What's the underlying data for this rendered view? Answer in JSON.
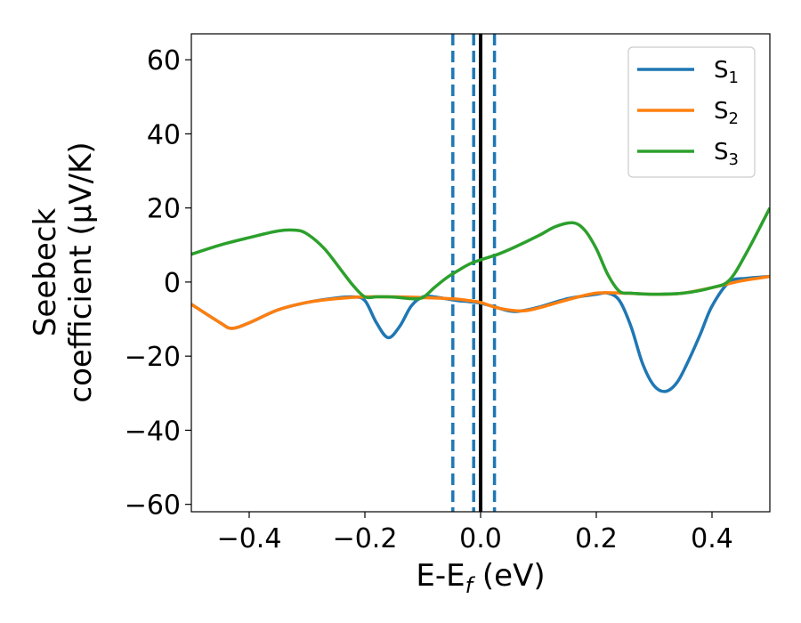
{
  "chart_data": {
    "type": "line",
    "xlabel": "E-E",
    "xlabel_sub": "f",
    "xlabel_unit": " (eV)",
    "ylabel_line1": "Seebeck",
    "ylabel_line2": "coefficient  (μV/K)",
    "xlim": [
      -0.5,
      0.5
    ],
    "ylim": [
      -62,
      67
    ],
    "xticks": [
      -0.4,
      -0.2,
      0.0,
      0.2,
      0.4
    ],
    "xtick_labels": [
      "−0.4",
      "−0.2",
      "0.0",
      "0.2",
      "0.4"
    ],
    "yticks": [
      -60,
      -40,
      -20,
      0,
      20,
      40,
      60
    ],
    "ytick_labels": [
      "−60",
      "−40",
      "−20",
      "0",
      "20",
      "40",
      "60"
    ],
    "grid": false,
    "legend_position": "top-right",
    "vlines": [
      {
        "x": 0.0,
        "style": "solid",
        "color": "#000000"
      },
      {
        "x": -0.048,
        "style": "dashed",
        "color": "#1f77b4"
      },
      {
        "x": -0.012,
        "style": "dashed",
        "color": "#1f77b4"
      },
      {
        "x": 0.024,
        "style": "dashed",
        "color": "#1f77b4"
      }
    ],
    "series": [
      {
        "name": "S",
        "sub": "1",
        "color": "#1f77b4",
        "x": [
          -0.5,
          -0.45,
          -0.43,
          -0.4,
          -0.35,
          -0.3,
          -0.25,
          -0.22,
          -0.2,
          -0.18,
          -0.16,
          -0.14,
          -0.12,
          -0.1,
          -0.08,
          -0.06,
          -0.04,
          -0.02,
          0.0,
          0.02,
          0.05,
          0.07,
          0.1,
          0.15,
          0.2,
          0.22,
          0.24,
          0.26,
          0.28,
          0.3,
          0.32,
          0.34,
          0.36,
          0.38,
          0.4,
          0.43,
          0.46,
          0.5
        ],
        "y": [
          -6,
          -11,
          -12.5,
          -11,
          -7.5,
          -5.5,
          -4.3,
          -4.0,
          -5.0,
          -11,
          -15,
          -12,
          -6.5,
          -4.0,
          -4.0,
          -4.5,
          -5.0,
          -5.3,
          -5.7,
          -6.5,
          -7.8,
          -7.8,
          -6.8,
          -4.5,
          -3.3,
          -3.0,
          -5.0,
          -12,
          -22,
          -28,
          -29.5,
          -27,
          -21,
          -14,
          -6.5,
          0.0,
          1.0,
          1.5
        ]
      },
      {
        "name": "S",
        "sub": "2",
        "color": "#ff7f0e",
        "x": [
          -0.5,
          -0.45,
          -0.43,
          -0.4,
          -0.35,
          -0.3,
          -0.25,
          -0.2,
          -0.15,
          -0.1,
          -0.05,
          -0.02,
          0.0,
          0.03,
          0.07,
          0.1,
          0.15,
          0.2,
          0.25,
          0.3,
          0.35,
          0.4,
          0.45,
          0.5
        ],
        "y": [
          -6,
          -11,
          -12.5,
          -11,
          -7.5,
          -5.5,
          -4.5,
          -4.0,
          -4.0,
          -4.2,
          -4.5,
          -5.0,
          -5.5,
          -7.0,
          -7.8,
          -7.0,
          -4.8,
          -3.0,
          -3.0,
          -3.3,
          -3.0,
          -1.5,
          0.3,
          1.5
        ]
      },
      {
        "name": "S",
        "sub": "3",
        "color": "#2ca02c",
        "x": [
          -0.5,
          -0.45,
          -0.4,
          -0.35,
          -0.32,
          -0.3,
          -0.27,
          -0.24,
          -0.22,
          -0.2,
          -0.18,
          -0.16,
          -0.14,
          -0.12,
          -0.1,
          -0.08,
          -0.06,
          -0.04,
          -0.02,
          0.0,
          0.03,
          0.06,
          0.1,
          0.13,
          0.16,
          0.18,
          0.2,
          0.22,
          0.24,
          0.26,
          0.28,
          0.3,
          0.35,
          0.4,
          0.43,
          0.46,
          0.5
        ],
        "y": [
          7.5,
          10,
          12,
          13.8,
          14,
          13,
          9,
          3,
          -1,
          -4.0,
          -4.0,
          -4.0,
          -4.2,
          -4.5,
          -4.2,
          -1.5,
          1.0,
          3.0,
          4.8,
          6.0,
          7.5,
          9.5,
          12.5,
          15,
          16,
          14,
          9,
          2,
          -2.5,
          -3.0,
          -3.2,
          -3.3,
          -3.0,
          -1.5,
          0.5,
          8,
          20
        ]
      }
    ]
  }
}
